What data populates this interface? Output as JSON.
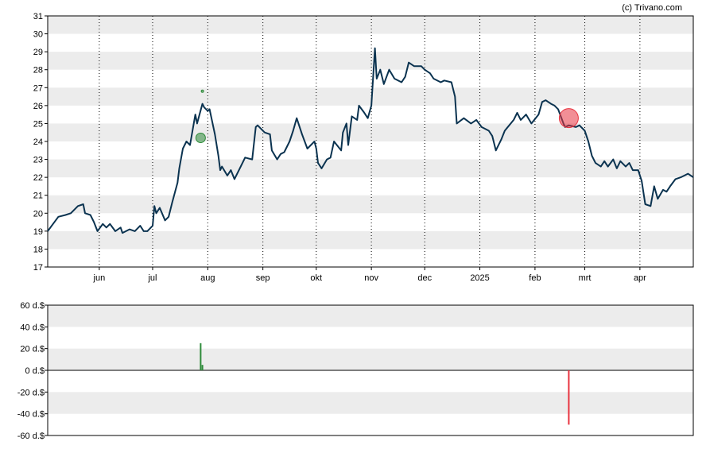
{
  "watermark": "(c) Trivano.com",
  "chart_data": [
    {
      "type": "line",
      "ylim": [
        17,
        31
      ],
      "y_ticks": [
        17,
        18,
        19,
        20,
        21,
        22,
        23,
        24,
        25,
        26,
        27,
        28,
        29,
        30,
        31
      ],
      "x_ticks": [
        {
          "label": "jun",
          "date": "2024-06-01"
        },
        {
          "label": "jul",
          "date": "2024-07-01"
        },
        {
          "label": "aug",
          "date": "2024-08-01"
        },
        {
          "label": "sep",
          "date": "2024-09-01"
        },
        {
          "label": "okt",
          "date": "2024-10-01"
        },
        {
          "label": "nov",
          "date": "2024-11-01"
        },
        {
          "label": "dec",
          "date": "2024-12-01"
        },
        {
          "label": "2025",
          "date": "2025-01-01"
        },
        {
          "label": "feb",
          "date": "2025-02-01"
        },
        {
          "label": "mrt",
          "date": "2025-03-01"
        },
        {
          "label": "apr",
          "date": "2025-04-01"
        }
      ],
      "x_range": [
        "2024-05-03",
        "2025-05-01"
      ],
      "grid": "horizontal bands, dotted vertical month lines",
      "colors": {
        "line": "#0b3350",
        "band": "#ececec",
        "buy": "#2e8b3a",
        "sell": "#e8333f"
      },
      "series": [
        {
          "points": [
            [
              "2024-05-03",
              19.0
            ],
            [
              "2024-05-06",
              19.4
            ],
            [
              "2024-05-09",
              19.8
            ],
            [
              "2024-05-13",
              19.9
            ],
            [
              "2024-05-16",
              20.0
            ],
            [
              "2024-05-20",
              20.4
            ],
            [
              "2024-05-23",
              20.5
            ],
            [
              "2024-05-24",
              20.0
            ],
            [
              "2024-05-27",
              19.9
            ],
            [
              "2024-05-29",
              19.5
            ],
            [
              "2024-05-31",
              19.0
            ],
            [
              "2024-06-03",
              19.4
            ],
            [
              "2024-06-05",
              19.2
            ],
            [
              "2024-06-07",
              19.4
            ],
            [
              "2024-06-10",
              19.0
            ],
            [
              "2024-06-13",
              19.2
            ],
            [
              "2024-06-14",
              18.9
            ],
            [
              "2024-06-18",
              19.1
            ],
            [
              "2024-06-21",
              19.0
            ],
            [
              "2024-06-24",
              19.3
            ],
            [
              "2024-06-26",
              19.0
            ],
            [
              "2024-06-28",
              19.0
            ],
            [
              "2024-07-01",
              19.3
            ],
            [
              "2024-07-02",
              20.4
            ],
            [
              "2024-07-03",
              20.0
            ],
            [
              "2024-07-05",
              20.3
            ],
            [
              "2024-07-08",
              19.6
            ],
            [
              "2024-07-10",
              19.8
            ],
            [
              "2024-07-12",
              20.6
            ],
            [
              "2024-07-15",
              21.7
            ],
            [
              "2024-07-16",
              22.5
            ],
            [
              "2024-07-18",
              23.6
            ],
            [
              "2024-07-20",
              24.0
            ],
            [
              "2024-07-22",
              23.8
            ],
            [
              "2024-07-25",
              25.5
            ],
            [
              "2024-07-26",
              25.0
            ],
            [
              "2024-07-29",
              26.1
            ],
            [
              "2024-07-30",
              25.9
            ],
            [
              "2024-08-01",
              25.7
            ],
            [
              "2024-08-02",
              25.8
            ],
            [
              "2024-08-05",
              24.4
            ],
            [
              "2024-08-07",
              23.2
            ],
            [
              "2024-08-08",
              22.4
            ],
            [
              "2024-08-09",
              22.6
            ],
            [
              "2024-08-12",
              22.1
            ],
            [
              "2024-08-14",
              22.4
            ],
            [
              "2024-08-16",
              21.9
            ],
            [
              "2024-08-19",
              22.5
            ],
            [
              "2024-08-22",
              23.1
            ],
            [
              "2024-08-26",
              23.0
            ],
            [
              "2024-08-28",
              24.8
            ],
            [
              "2024-08-29",
              24.9
            ],
            [
              "2024-09-02",
              24.5
            ],
            [
              "2024-09-05",
              24.4
            ],
            [
              "2024-09-06",
              23.5
            ],
            [
              "2024-09-09",
              23.0
            ],
            [
              "2024-09-11",
              23.3
            ],
            [
              "2024-09-13",
              23.4
            ],
            [
              "2024-09-16",
              24.0
            ],
            [
              "2024-09-18",
              24.6
            ],
            [
              "2024-09-20",
              25.3
            ],
            [
              "2024-09-23",
              24.4
            ],
            [
              "2024-09-26",
              23.6
            ],
            [
              "2024-09-30",
              24.0
            ],
            [
              "2024-10-01",
              23.6
            ],
            [
              "2024-10-02",
              22.8
            ],
            [
              "2024-10-04",
              22.5
            ],
            [
              "2024-10-07",
              23.0
            ],
            [
              "2024-10-09",
              23.1
            ],
            [
              "2024-10-11",
              24.0
            ],
            [
              "2024-10-15",
              23.5
            ],
            [
              "2024-10-16",
              24.5
            ],
            [
              "2024-10-18",
              25.0
            ],
            [
              "2024-10-19",
              23.8
            ],
            [
              "2024-10-21",
              25.4
            ],
            [
              "2024-10-24",
              25.2
            ],
            [
              "2024-10-25",
              26.0
            ],
            [
              "2024-10-28",
              25.6
            ],
            [
              "2024-10-30",
              25.3
            ],
            [
              "2024-11-01",
              26.0
            ],
            [
              "2024-11-03",
              29.2
            ],
            [
              "2024-11-04",
              27.5
            ],
            [
              "2024-11-06",
              28.0
            ],
            [
              "2024-11-08",
              27.2
            ],
            [
              "2024-11-11",
              28.0
            ],
            [
              "2024-11-14",
              27.5
            ],
            [
              "2024-11-18",
              27.3
            ],
            [
              "2024-11-20",
              27.6
            ],
            [
              "2024-11-22",
              28.4
            ],
            [
              "2024-11-25",
              28.2
            ],
            [
              "2024-11-29",
              28.2
            ],
            [
              "2024-12-01",
              28.0
            ],
            [
              "2024-12-04",
              27.8
            ],
            [
              "2024-12-06",
              27.5
            ],
            [
              "2024-12-10",
              27.3
            ],
            [
              "2024-12-12",
              27.4
            ],
            [
              "2024-12-16",
              27.3
            ],
            [
              "2024-12-18",
              26.5
            ],
            [
              "2024-12-19",
              25.0
            ],
            [
              "2024-12-23",
              25.3
            ],
            [
              "2024-12-27",
              25.0
            ],
            [
              "2024-12-30",
              25.2
            ],
            [
              "2025-01-02",
              24.8
            ],
            [
              "2025-01-06",
              24.6
            ],
            [
              "2025-01-08",
              24.3
            ],
            [
              "2025-01-10",
              23.5
            ],
            [
              "2025-01-13",
              24.1
            ],
            [
              "2025-01-15",
              24.6
            ],
            [
              "2025-01-20",
              25.2
            ],
            [
              "2025-01-22",
              25.6
            ],
            [
              "2025-01-24",
              25.2
            ],
            [
              "2025-01-27",
              25.5
            ],
            [
              "2025-01-30",
              25.0
            ],
            [
              "2025-02-03",
              25.5
            ],
            [
              "2025-02-05",
              26.2
            ],
            [
              "2025-02-07",
              26.3
            ],
            [
              "2025-02-10",
              26.1
            ],
            [
              "2025-02-12",
              26.0
            ],
            [
              "2025-02-14",
              25.8
            ],
            [
              "2025-02-17",
              25.0
            ],
            [
              "2025-02-18",
              24.8
            ],
            [
              "2025-02-20",
              24.9
            ],
            [
              "2025-02-24",
              24.8
            ],
            [
              "2025-02-26",
              24.9
            ],
            [
              "2025-03-01",
              24.6
            ],
            [
              "2025-03-03",
              24.0
            ],
            [
              "2025-03-05",
              23.2
            ],
            [
              "2025-03-07",
              22.8
            ],
            [
              "2025-03-10",
              22.6
            ],
            [
              "2025-03-12",
              22.9
            ],
            [
              "2025-03-14",
              22.6
            ],
            [
              "2025-03-17",
              23.0
            ],
            [
              "2025-03-19",
              22.5
            ],
            [
              "2025-03-21",
              22.9
            ],
            [
              "2025-03-24",
              22.6
            ],
            [
              "2025-03-26",
              22.8
            ],
            [
              "2025-03-28",
              22.4
            ],
            [
              "2025-03-31",
              22.4
            ],
            [
              "2025-04-02",
              21.8
            ],
            [
              "2025-04-04",
              20.5
            ],
            [
              "2025-04-07",
              20.4
            ],
            [
              "2025-04-09",
              21.5
            ],
            [
              "2025-04-11",
              20.8
            ],
            [
              "2025-04-14",
              21.3
            ],
            [
              "2025-04-16",
              21.2
            ],
            [
              "2025-04-18",
              21.5
            ],
            [
              "2025-04-21",
              21.9
            ],
            [
              "2025-04-24",
              22.0
            ],
            [
              "2025-04-28",
              22.2
            ],
            [
              "2025-05-01",
              22.0
            ]
          ]
        }
      ],
      "markers": [
        {
          "type": "buy",
          "date": "2024-07-28",
          "value": 24.2,
          "size": "small"
        },
        {
          "type": "buy",
          "date": "2024-07-29",
          "value": 26.8,
          "size": "tiny"
        },
        {
          "type": "sell",
          "date": "2025-02-20",
          "value": 25.3,
          "size": "large"
        }
      ]
    },
    {
      "type": "bar",
      "ylim": [
        -60,
        60
      ],
      "y_tick_labels": [
        "60 d.$",
        "40 d.$",
        "20 d.$",
        "0 d.$",
        "-20 d.$",
        "-40 d.$",
        "-60 d.$"
      ],
      "y_tick_values": [
        60,
        40,
        20,
        0,
        -20,
        -40,
        -60
      ],
      "bars": [
        {
          "date": "2024-07-28",
          "value": 25,
          "kind": "buy"
        },
        {
          "date": "2024-07-29",
          "value": 5,
          "kind": "buy"
        },
        {
          "date": "2025-02-20",
          "value": -50,
          "kind": "sell"
        }
      ]
    }
  ]
}
